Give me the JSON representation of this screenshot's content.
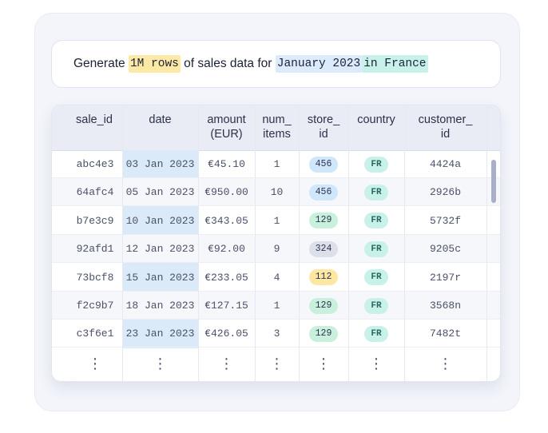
{
  "prompt": {
    "prefix": "Generate ",
    "highlight_rows": "1M rows",
    "middle": " of sales data for ",
    "highlight_month": "January 2023",
    "space": " ",
    "highlight_country": "in France"
  },
  "table": {
    "headers": {
      "sale_id": "sale_id",
      "date": "date",
      "amount_1": "amount",
      "amount_2": "(EUR)",
      "num_items_1": "num_",
      "num_items_2": "items",
      "store_id_1": "store_",
      "store_id_2": "id",
      "country": "country",
      "customer_id_1": "customer_",
      "customer_id_2": "id"
    },
    "rows": [
      {
        "sale_id": "abc4e3",
        "date": "03 Jan 2023",
        "amount": "€45.10",
        "num_items": "1",
        "store_id": "456",
        "country": "FR",
        "customer_id": "4424a"
      },
      {
        "sale_id": "64afc4",
        "date": "05 Jan 2023",
        "amount": "€950.00",
        "num_items": "10",
        "store_id": "456",
        "country": "FR",
        "customer_id": "2926b"
      },
      {
        "sale_id": "b7e3c9",
        "date": "10 Jan 2023",
        "amount": "€343.05",
        "num_items": "1",
        "store_id": "129",
        "country": "FR",
        "customer_id": "5732f"
      },
      {
        "sale_id": "92afd1",
        "date": "12 Jan 2023",
        "amount": "€92.00",
        "num_items": "9",
        "store_id": "324",
        "country": "FR",
        "customer_id": "9205c"
      },
      {
        "sale_id": "73bcf8",
        "date": "15 Jan 2023",
        "amount": "€233.05",
        "num_items": "4",
        "store_id": "112",
        "country": "FR",
        "customer_id": "2197r"
      },
      {
        "sale_id": "f2c9b7",
        "date": "18 Jan 2023",
        "amount": "€127.15",
        "num_items": "1",
        "store_id": "129",
        "country": "FR",
        "customer_id": "3568n"
      },
      {
        "sale_id": "c3f6e1",
        "date": "23 Jan 2023",
        "amount": "€426.05",
        "num_items": "3",
        "store_id": "129",
        "country": "FR",
        "customer_id": "7482t"
      }
    ],
    "ellipsis": "⋮"
  },
  "store_colors": {
    "456": "#cfe6fb",
    "129": "#c9f0dc",
    "324": "#dde0ea",
    "112": "#fde7a3"
  }
}
